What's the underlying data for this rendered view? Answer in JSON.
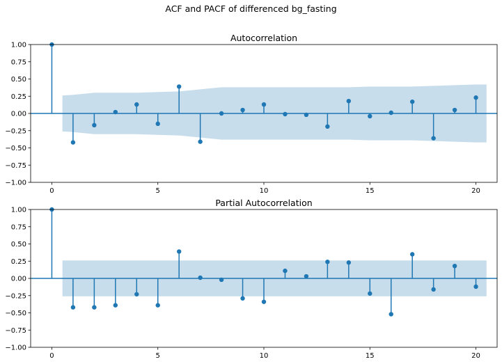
{
  "figure": {
    "suptitle": "ACF and PACF of differenced bg_fasting"
  },
  "colors": {
    "stem": "#1f77b4",
    "band": "#1f77b4",
    "axis": "#000000"
  },
  "chart_data": [
    {
      "type": "stem",
      "title": "Autocorrelation",
      "xlabel": "",
      "ylabel": "",
      "x": [
        0,
        1,
        2,
        3,
        4,
        5,
        6,
        7,
        8,
        9,
        10,
        11,
        12,
        13,
        14,
        15,
        16,
        17,
        18,
        19,
        20
      ],
      "values": [
        1.0,
        -0.42,
        -0.17,
        0.02,
        0.13,
        -0.15,
        0.39,
        -0.41,
        0.0,
        0.05,
        0.13,
        -0.01,
        -0.02,
        -0.19,
        0.18,
        -0.04,
        0.01,
        0.17,
        -0.36,
        0.05,
        0.23
      ],
      "confidence_x": [
        0.5,
        1,
        2,
        3,
        4,
        5,
        6,
        7,
        8,
        9,
        10,
        11,
        12,
        13,
        14,
        15,
        16,
        17,
        18,
        19,
        20,
        20.5
      ],
      "confidence_upper": [
        0.26,
        0.27,
        0.3,
        0.3,
        0.3,
        0.31,
        0.32,
        0.35,
        0.38,
        0.38,
        0.38,
        0.38,
        0.38,
        0.38,
        0.38,
        0.39,
        0.39,
        0.39,
        0.4,
        0.41,
        0.42,
        0.42
      ],
      "xlim": [
        -1,
        21
      ],
      "ylim": [
        -1.0,
        1.0
      ],
      "xticks": [
        "0",
        "5",
        "10",
        "15",
        "20"
      ],
      "yticks": [
        "1.00",
        "0.75",
        "0.50",
        "0.25",
        "0.00",
        "−0.25",
        "−0.50",
        "−0.75",
        "−1.00"
      ],
      "grid": false
    },
    {
      "type": "stem",
      "title": "Partial Autocorrelation",
      "xlabel": "",
      "ylabel": "",
      "x": [
        0,
        1,
        2,
        3,
        4,
        5,
        6,
        7,
        8,
        9,
        10,
        11,
        12,
        13,
        14,
        15,
        16,
        17,
        18,
        19,
        20
      ],
      "values": [
        1.0,
        -0.42,
        -0.42,
        -0.39,
        -0.23,
        -0.39,
        0.39,
        0.01,
        -0.02,
        -0.29,
        -0.34,
        0.11,
        0.03,
        0.24,
        0.23,
        -0.22,
        -0.52,
        0.35,
        -0.16,
        0.18,
        -0.12
      ],
      "confidence_x": [
        0.5,
        20.5
      ],
      "confidence_upper": [
        0.26,
        0.26
      ],
      "xlim": [
        -1,
        21
      ],
      "ylim": [
        -1.0,
        1.0
      ],
      "xticks": [
        "0",
        "5",
        "10",
        "15",
        "20"
      ],
      "yticks": [
        "1.00",
        "0.75",
        "0.50",
        "0.25",
        "0.00",
        "−0.25",
        "−0.50",
        "−0.75",
        "−1.00"
      ],
      "grid": false
    }
  ]
}
